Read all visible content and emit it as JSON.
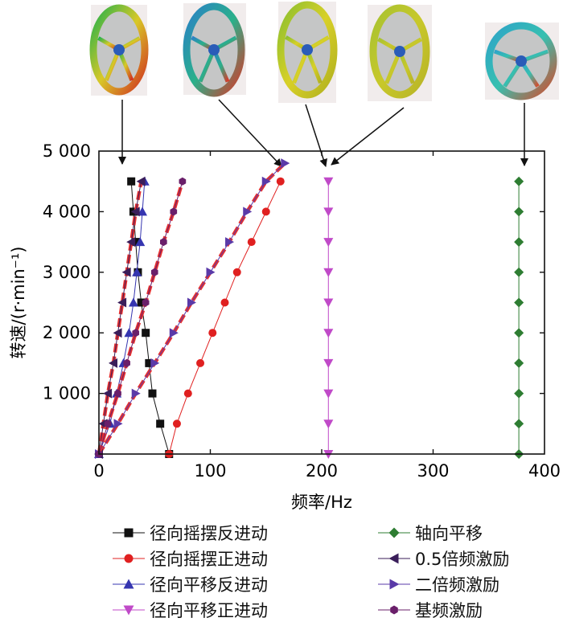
{
  "chart_data": {
    "type": "line",
    "title": "",
    "xlabel": "频率/Hz",
    "ylabel": "转速/(r·min⁻¹)",
    "xlim": [
      0,
      400
    ],
    "ylim": [
      0,
      5000
    ],
    "xticks": [
      0,
      100,
      200,
      300,
      400
    ],
    "xtick_labels": [
      "0",
      "100",
      "200",
      "300",
      "400"
    ],
    "yticks": [
      1000,
      2000,
      3000,
      4000,
      5000
    ],
    "ytick_labels": [
      "1 000",
      "2 000",
      "3 000",
      "4 000",
      "5 000"
    ],
    "grid": false,
    "legend_position": "bottom",
    "series": [
      {
        "name": "径向摇摆反进动",
        "color": "#111111",
        "marker": "square",
        "dashed": false,
        "x": [
          63,
          55,
          48,
          45,
          42,
          38,
          35,
          33,
          31,
          29
        ],
        "y": [
          0,
          500,
          1000,
          1500,
          2000,
          2500,
          3000,
          3500,
          4000,
          4500
        ]
      },
      {
        "name": "径向摇摆正进动",
        "color": "#e02020",
        "marker": "circle",
        "dashed": false,
        "x": [
          63,
          70,
          80,
          91,
          102,
          113,
          124,
          137,
          150,
          163
        ],
        "y": [
          0,
          500,
          1000,
          1500,
          2000,
          2500,
          3000,
          3500,
          4000,
          4500
        ]
      },
      {
        "name": "径向平移反进动",
        "color": "#3535b0",
        "marker": "triangle-up",
        "dashed": false,
        "x": [
          0,
          10,
          16,
          22,
          27,
          31,
          34,
          37,
          39,
          41
        ],
        "y": [
          0,
          500,
          1000,
          1500,
          2000,
          2500,
          3000,
          3500,
          4000,
          4500
        ]
      },
      {
        "name": "径向平移正进动",
        "color": "#c04ac8",
        "marker": "triangle-down",
        "dashed": false,
        "x": [
          206,
          206,
          206,
          206,
          206,
          206,
          206,
          206,
          206,
          206
        ],
        "y": [
          0,
          500,
          1000,
          1500,
          2000,
          2500,
          3000,
          3500,
          4000,
          4500
        ]
      },
      {
        "name": "轴向平移",
        "color": "#2e7d32",
        "marker": "diamond",
        "dashed": false,
        "x": [
          377,
          377,
          377,
          377,
          377,
          377,
          377,
          377,
          377,
          377
        ],
        "y": [
          0,
          500,
          1000,
          1500,
          2000,
          2500,
          3000,
          3500,
          4000,
          4500
        ]
      },
      {
        "name": "0.5倍频激励",
        "color": "#3a1e5a",
        "marker": "triangle-left",
        "dashed": true,
        "x": [
          0,
          4,
          8,
          13,
          17,
          21,
          25,
          29,
          33,
          38
        ],
        "y": [
          0,
          500,
          1000,
          1500,
          2000,
          2500,
          3000,
          3500,
          4000,
          4500
        ]
      },
      {
        "name": "二倍频激励",
        "color": "#5a3aa8",
        "marker": "triangle-right",
        "dashed": true,
        "x": [
          0,
          17,
          33,
          50,
          67,
          83,
          100,
          117,
          133,
          150,
          167
        ],
        "y": [
          0,
          500,
          1000,
          1500,
          2000,
          2500,
          3000,
          3500,
          4000,
          4500,
          4800
        ]
      },
      {
        "name": "基频激励",
        "color": "#6a1f6a",
        "marker": "hexagon",
        "dashed": true,
        "x": [
          0,
          8,
          17,
          25,
          33,
          42,
          50,
          58,
          67,
          75
        ],
        "y": [
          0,
          500,
          1000,
          1500,
          2000,
          2500,
          3000,
          3500,
          4000,
          4500
        ]
      }
    ]
  },
  "thumbnails": [
    {
      "name": "mode-1-image"
    },
    {
      "name": "mode-2-image"
    },
    {
      "name": "mode-3-image"
    },
    {
      "name": "mode-4-image"
    },
    {
      "name": "mode-5-image"
    }
  ]
}
